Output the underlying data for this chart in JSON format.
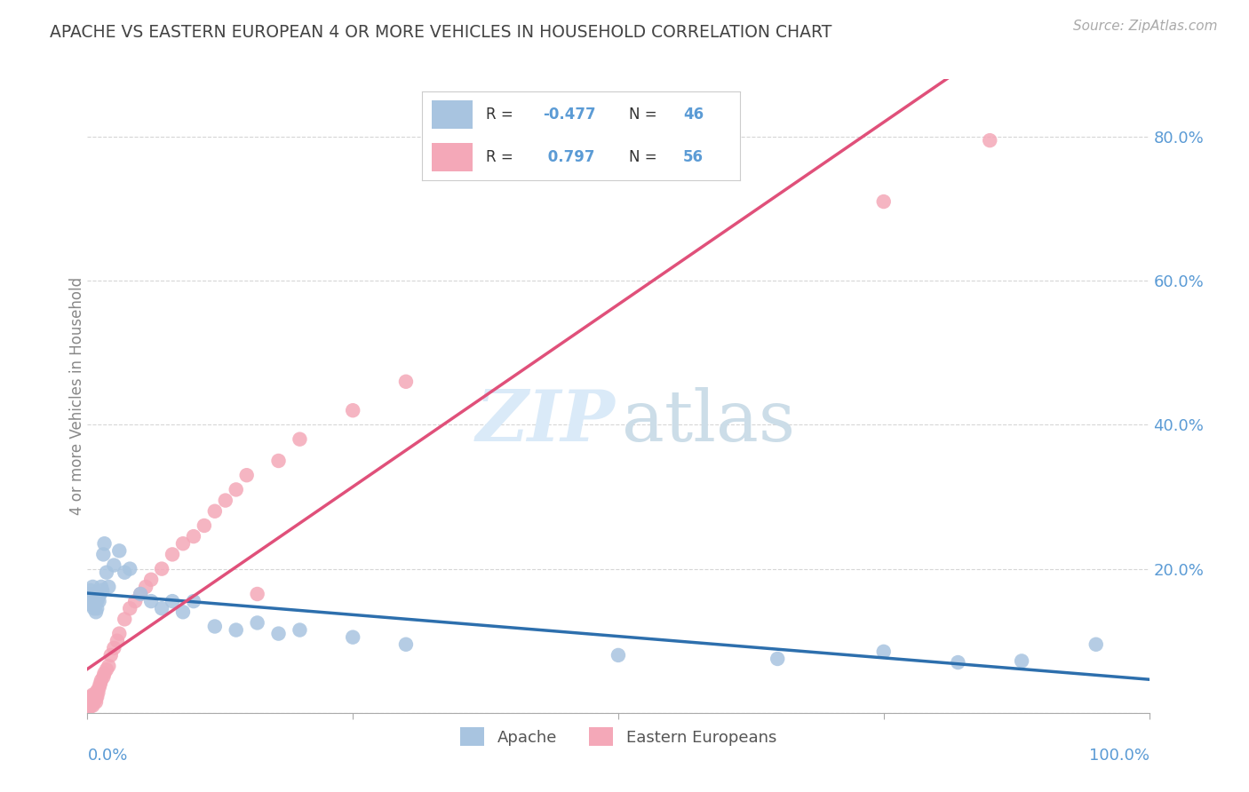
{
  "title": "APACHE VS EASTERN EUROPEAN 4 OR MORE VEHICLES IN HOUSEHOLD CORRELATION CHART",
  "source": "Source: ZipAtlas.com",
  "ylabel": "4 or more Vehicles in Household",
  "legend_apache": "Apache",
  "legend_eastern": "Eastern Europeans",
  "apache_R": -0.477,
  "apache_N": 46,
  "eastern_R": 0.797,
  "eastern_N": 56,
  "apache_color": "#a8c4e0",
  "eastern_color": "#f4a8b8",
  "apache_line_color": "#2d6fad",
  "eastern_line_color": "#e0507a",
  "apache_x": [
    0.001,
    0.002,
    0.003,
    0.003,
    0.004,
    0.005,
    0.005,
    0.006,
    0.006,
    0.007,
    0.007,
    0.008,
    0.009,
    0.009,
    0.01,
    0.011,
    0.012,
    0.013,
    0.014,
    0.015,
    0.016,
    0.018,
    0.02,
    0.025,
    0.03,
    0.035,
    0.04,
    0.05,
    0.06,
    0.07,
    0.08,
    0.09,
    0.1,
    0.12,
    0.14,
    0.16,
    0.18,
    0.2,
    0.25,
    0.3,
    0.5,
    0.65,
    0.75,
    0.82,
    0.88,
    0.95
  ],
  "apache_y": [
    0.16,
    0.165,
    0.155,
    0.17,
    0.15,
    0.16,
    0.175,
    0.145,
    0.155,
    0.15,
    0.165,
    0.14,
    0.155,
    0.145,
    0.16,
    0.155,
    0.165,
    0.175,
    0.17,
    0.22,
    0.235,
    0.195,
    0.175,
    0.205,
    0.225,
    0.195,
    0.2,
    0.165,
    0.155,
    0.145,
    0.155,
    0.14,
    0.155,
    0.12,
    0.115,
    0.125,
    0.11,
    0.115,
    0.105,
    0.095,
    0.08,
    0.075,
    0.085,
    0.07,
    0.072,
    0.095
  ],
  "eastern_x": [
    0.001,
    0.001,
    0.002,
    0.002,
    0.002,
    0.003,
    0.003,
    0.003,
    0.004,
    0.004,
    0.004,
    0.005,
    0.005,
    0.005,
    0.006,
    0.006,
    0.007,
    0.007,
    0.008,
    0.008,
    0.009,
    0.009,
    0.01,
    0.011,
    0.012,
    0.013,
    0.015,
    0.016,
    0.018,
    0.02,
    0.022,
    0.025,
    0.028,
    0.03,
    0.035,
    0.04,
    0.045,
    0.05,
    0.055,
    0.06,
    0.07,
    0.08,
    0.09,
    0.1,
    0.11,
    0.12,
    0.13,
    0.14,
    0.15,
    0.16,
    0.18,
    0.2,
    0.25,
    0.3,
    0.75,
    0.85
  ],
  "eastern_y": [
    0.015,
    0.01,
    0.02,
    0.008,
    0.018,
    0.015,
    0.01,
    0.022,
    0.018,
    0.012,
    0.02,
    0.015,
    0.025,
    0.01,
    0.02,
    0.015,
    0.018,
    0.025,
    0.02,
    0.015,
    0.022,
    0.03,
    0.028,
    0.035,
    0.04,
    0.045,
    0.05,
    0.055,
    0.06,
    0.065,
    0.08,
    0.09,
    0.1,
    0.11,
    0.13,
    0.145,
    0.155,
    0.165,
    0.175,
    0.185,
    0.2,
    0.22,
    0.235,
    0.245,
    0.26,
    0.28,
    0.295,
    0.31,
    0.33,
    0.165,
    0.35,
    0.38,
    0.42,
    0.46,
    0.71,
    0.795
  ],
  "xlim": [
    0.0,
    1.0
  ],
  "ylim": [
    0.0,
    0.88
  ],
  "ytick_values": [
    0.0,
    0.2,
    0.4,
    0.6,
    0.8
  ],
  "ytick_labels": [
    "",
    "20.0%",
    "40.0%",
    "60.0%",
    "80.0%"
  ],
  "bg_color": "#ffffff",
  "grid_color": "#cccccc",
  "title_color": "#444444",
  "tick_label_color": "#5b9bd5",
  "legend_R_color": "#5b9bd5"
}
